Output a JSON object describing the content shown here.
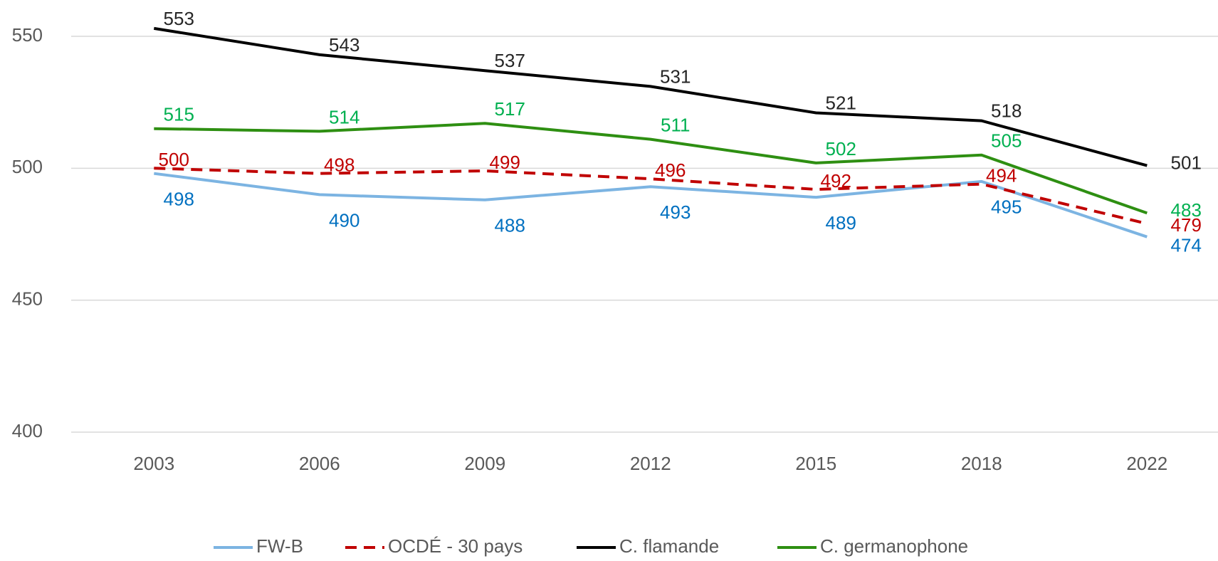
{
  "chart_data": {
    "type": "line",
    "categories": [
      "2003",
      "2006",
      "2009",
      "2012",
      "2015",
      "2018",
      "2022"
    ],
    "series": [
      {
        "name": "FW-B",
        "color": "#7cb4e2",
        "label_color": "#0070c0",
        "dash": false,
        "values": [
          498,
          490,
          488,
          493,
          489,
          495,
          474
        ]
      },
      {
        "name": "OCDÉ - 30 pays",
        "color": "#c00000",
        "label_color": "#c00000",
        "dash": true,
        "values": [
          500,
          498,
          499,
          496,
          492,
          494,
          479
        ]
      },
      {
        "name": "C. flamande",
        "color": "#000000",
        "label_color": "#262626",
        "dash": false,
        "values": [
          553,
          543,
          537,
          531,
          521,
          518,
          501
        ]
      },
      {
        "name": "C. germanophone",
        "color": "#2e8f12",
        "label_color": "#00b050",
        "dash": false,
        "values": [
          515,
          514,
          517,
          511,
          502,
          505,
          483
        ]
      }
    ],
    "ylim": [
      400,
      560
    ],
    "yticks": [
      400,
      450,
      500,
      550
    ],
    "grid": true,
    "legend": "bottom"
  }
}
